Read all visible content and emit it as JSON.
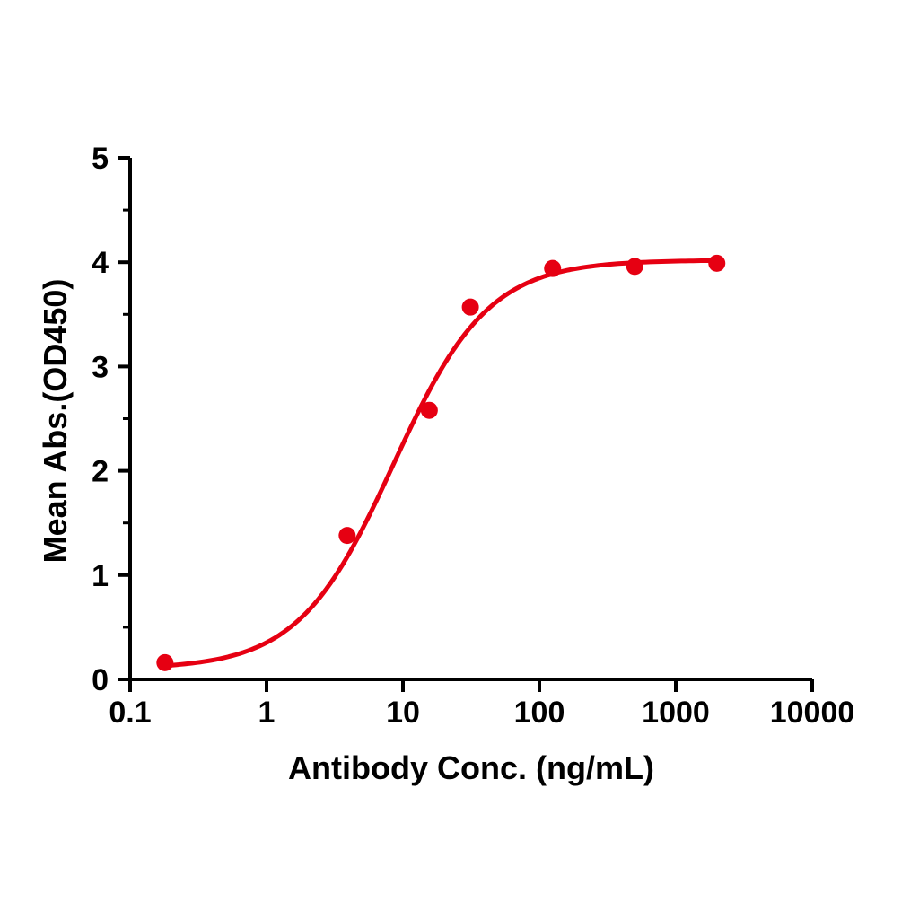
{
  "figure": {
    "background": "#ffffff",
    "axis_color": "#000000"
  },
  "chart_data": {
    "type": "scatter",
    "title": "",
    "xlabel": "Antibody Conc. (ng/mL)",
    "ylabel": "Mean Abs.(OD450)",
    "x_scale": "log10",
    "xlim": [
      0.1,
      10000
    ],
    "ylim": [
      0,
      5
    ],
    "x_ticks": [
      0.1,
      1,
      10,
      100,
      1000,
      10000
    ],
    "x_tick_labels": [
      "0.1",
      "1",
      "10",
      "100",
      "1000",
      "10000"
    ],
    "y_ticks": [
      0,
      1,
      2,
      3,
      4,
      5
    ],
    "y_tick_labels": [
      "0",
      "1",
      "2",
      "3",
      "4",
      "5"
    ],
    "y_minor_step": 0.5,
    "grid": false,
    "legend": "none",
    "marker_color": "#e60012",
    "line_color": "#e60012",
    "x": [
      0.18,
      3.9,
      15.6,
      31.2,
      125,
      500,
      2000
    ],
    "y": [
      0.16,
      1.38,
      2.58,
      3.57,
      3.94,
      3.96,
      3.99
    ],
    "fit": {
      "model": "4PL",
      "bottom": 0.1,
      "top": 4.02,
      "ec50": 8.5,
      "hill": 1.25
    }
  }
}
